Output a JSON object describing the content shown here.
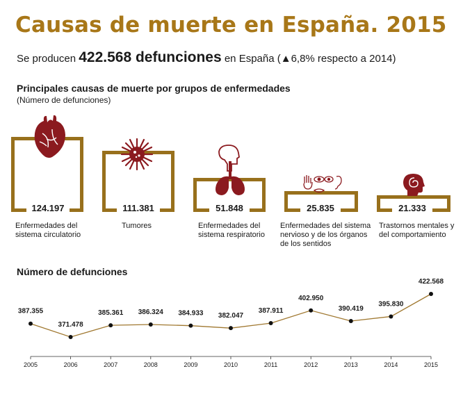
{
  "header": {
    "title": "Causas de muerte en España. 2015",
    "sub_prefix": "Se producen ",
    "sub_big": "422.568 defunciones",
    "sub_suffix": " en España (▲6,8% respecto a 2014)"
  },
  "section": {
    "title": "Principales causas de muerte por grupos de enfermedades",
    "subtitle": "(Número de defunciones)"
  },
  "groups": [
    {
      "value": "124.197",
      "label": "Enfermedades del sistema circulatorio",
      "icon": "heart-icon"
    },
    {
      "value": "111.381",
      "label": "Tumores",
      "icon": "tumor-cell-icon"
    },
    {
      "value": "51.848",
      "label": "Enfermedades del sistema respiratorio",
      "icon": "lungs-icon"
    },
    {
      "value": "25.835",
      "label": "Enfermedades del sistema nervioso y de los órganos de los sentidos",
      "icon": "senses-icons"
    },
    {
      "value": "21.333",
      "label": "Trastornos mentales y del comportamiento",
      "icon": "head-spiral-icon"
    }
  ],
  "colors": {
    "accent": "#a87718",
    "bracket": "#98701c",
    "icon": "#8b1a1f",
    "line": "#a07830"
  },
  "chart_data": {
    "type": "line",
    "title": "Número de defunciones",
    "x": [
      2005,
      2006,
      2007,
      2008,
      2009,
      2010,
      2011,
      2012,
      2013,
      2014,
      2015
    ],
    "values": [
      387355,
      371478,
      385361,
      386324,
      384933,
      382047,
      387911,
      402950,
      390419,
      395830,
      422568
    ],
    "value_labels": [
      "387.355",
      "371.478",
      "385.361",
      "386.324",
      "384.933",
      "382.047",
      "387.911",
      "402.950",
      "390.419",
      "395.830",
      "422.568"
    ],
    "grid": false
  }
}
